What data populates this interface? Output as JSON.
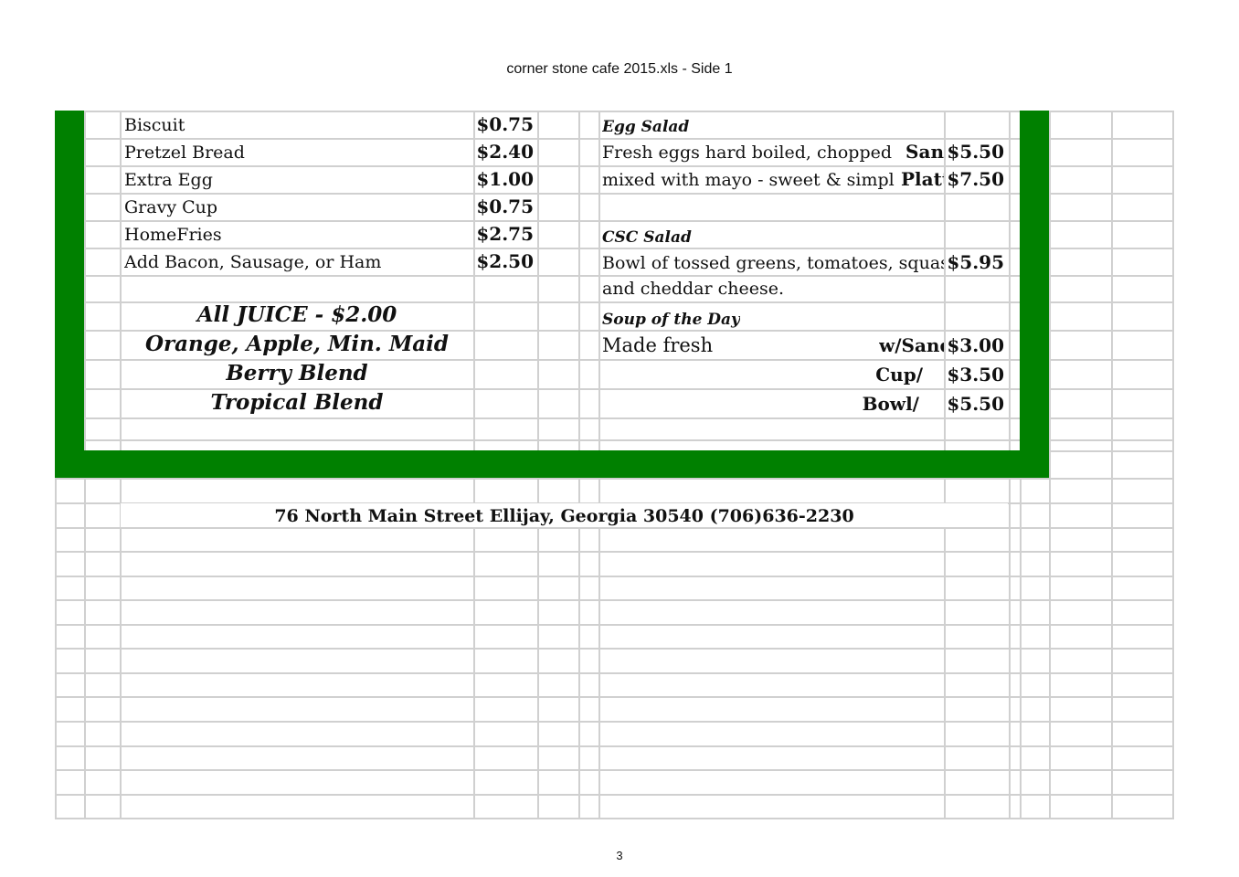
{
  "header": {
    "title": "corner stone cafe 2015.xls - Side 1"
  },
  "left_items": [
    {
      "name": "Biscuit",
      "price": "$0.75"
    },
    {
      "name": "Pretzel Bread",
      "price": "$2.40"
    },
    {
      "name": "Extra Egg",
      "price": "$1.00"
    },
    {
      "name": "Gravy Cup",
      "price": "$0.75"
    },
    {
      "name": "HomeFries",
      "price": "$2.75"
    },
    {
      "name": "Add Bacon, Sausage, or Ham",
      "price": "$2.50"
    }
  ],
  "juice": {
    "heading": "All JUICE  -  $2.00",
    "lines": [
      "Orange, Apple, Min. Maid",
      "Berry Blend",
      "Tropical Blend"
    ]
  },
  "egg_salad": {
    "title": "Egg Salad",
    "desc1": "Fresh eggs hard boiled, chopped and",
    "desc2": "mixed with mayo - sweet & simple.",
    "opt1": "San",
    "price1": "$5.50",
    "opt2": "Platt",
    "price2": "$7.50"
  },
  "csc_salad": {
    "title": "CSC Salad",
    "desc1": "Bowl of tossed greens, tomatoes, squashes,",
    "desc2": "and cheddar cheese.",
    "price": "$5.95"
  },
  "soup": {
    "title": "Soup of the Day",
    "desc": "Made fresh",
    "opt1": "w/Sand",
    "price1": "$3.00",
    "opt2": "Cup/",
    "price2": "$3.50",
    "opt3": "Bowl/",
    "price3": "$5.50"
  },
  "footer": {
    "address": "76 North Main Street Ellijay, Georgia 30540  (706)636-2230"
  },
  "page_number": "3",
  "colors": {
    "border_green": "#008000",
    "grid": "#d0d0d0"
  }
}
